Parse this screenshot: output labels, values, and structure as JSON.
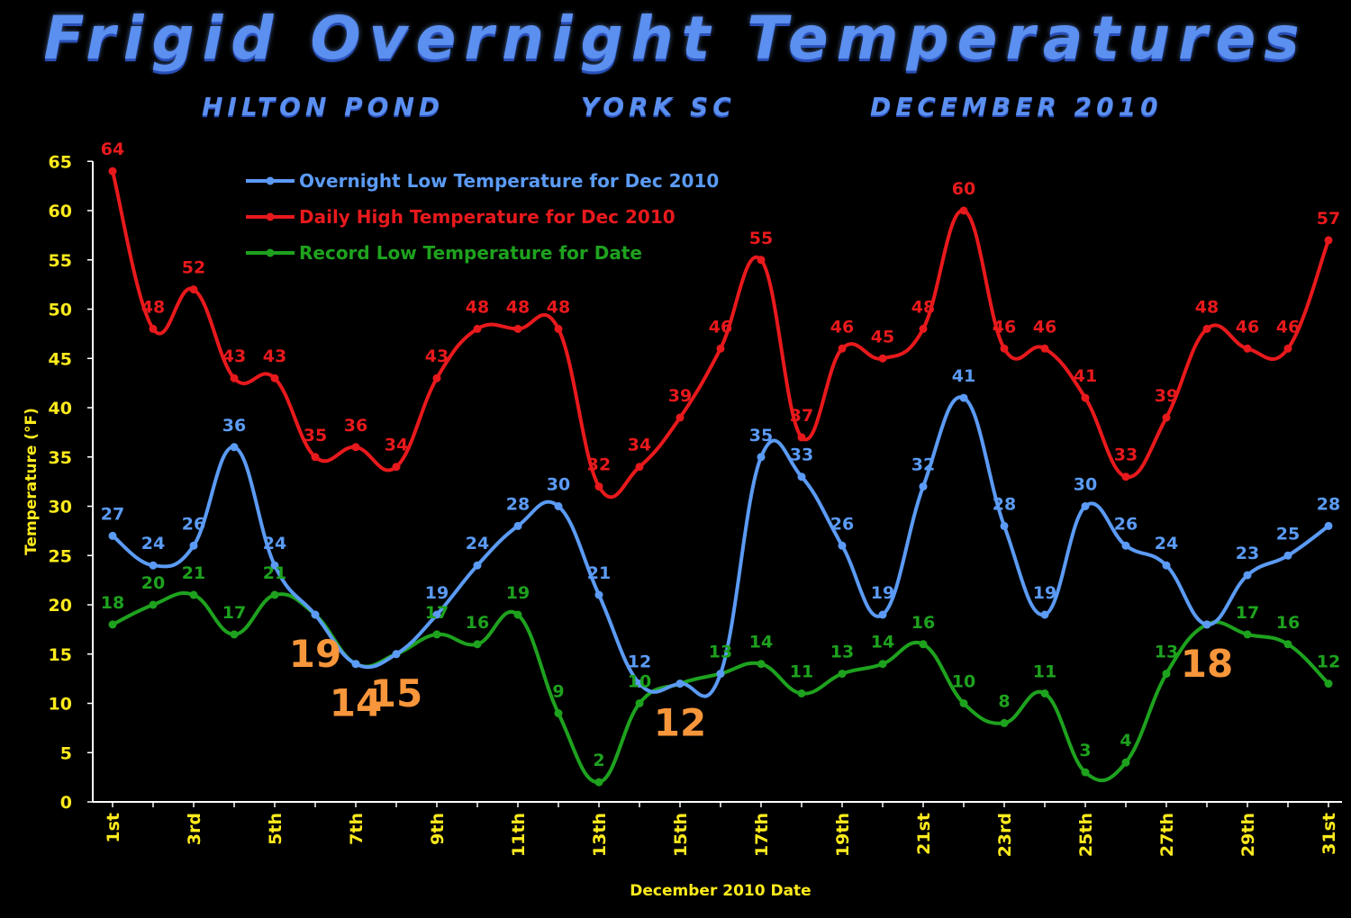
{
  "header": {
    "title": "Frigid Overnight Temperatures",
    "subtitle_left": "HILTON POND",
    "subtitle_mid": "YORK SC",
    "subtitle_right": "DECEMBER 2010"
  },
  "colors": {
    "background": "#000000",
    "axis_text": "#ffeb1c",
    "title": "#5b8ff0",
    "callout": "#f7963a"
  },
  "chart_data": {
    "type": "line",
    "x": [
      1,
      2,
      3,
      4,
      5,
      6,
      7,
      8,
      9,
      10,
      11,
      12,
      13,
      14,
      15,
      16,
      17,
      18,
      19,
      20,
      21,
      22,
      23,
      24,
      25,
      26,
      27,
      28,
      29,
      30,
      31
    ],
    "x_tick_positions": [
      1,
      3,
      5,
      7,
      9,
      11,
      13,
      15,
      17,
      19,
      21,
      23,
      25,
      27,
      29,
      31
    ],
    "x_tick_labels": [
      "1st",
      "3rd",
      "5th",
      "7th",
      "9th",
      "11th",
      "13th",
      "15th",
      "17th",
      "19th",
      "21st",
      "23rd",
      "25th",
      "27th",
      "29th",
      "31st"
    ],
    "xlabel": "December 2010 Date",
    "ylabel": "Temperature (°F)",
    "ylim": [
      0,
      65
    ],
    "y_ticks": [
      0,
      5,
      10,
      15,
      20,
      25,
      30,
      35,
      40,
      45,
      50,
      55,
      60,
      65
    ],
    "grid": false,
    "legend_position": "top-left",
    "series": [
      {
        "name": "Overnight Low Temperature for Dec 2010",
        "color": "#5b9bf5",
        "values": [
          27,
          24,
          26,
          36,
          24,
          19,
          14,
          15,
          19,
          24,
          28,
          30,
          21,
          12,
          12,
          13,
          35,
          33,
          26,
          19,
          32,
          41,
          28,
          19,
          30,
          26,
          24,
          18,
          23,
          25,
          28
        ],
        "labels": [
          "27",
          "24",
          "26",
          "36",
          "24",
          "",
          "",
          "",
          "19",
          "24",
          "28",
          "30",
          "21",
          "12",
          "",
          "",
          "35",
          "33",
          "26",
          "19",
          "32",
          "41",
          "28",
          "19",
          "30",
          "26",
          "24",
          "",
          "23",
          "25",
          "28"
        ]
      },
      {
        "name": "Daily High Temperature for Dec 2010",
        "color": "#e8191c",
        "values": [
          64,
          48,
          52,
          43,
          43,
          35,
          36,
          34,
          43,
          48,
          48,
          48,
          32,
          34,
          39,
          46,
          55,
          37,
          46,
          45,
          48,
          60,
          46,
          46,
          41,
          33,
          39,
          48,
          46,
          46,
          57
        ],
        "labels": [
          "64",
          "48",
          "52",
          "43",
          "43",
          "35",
          "36",
          "34",
          "43",
          "48",
          "48",
          "48",
          "32",
          "34",
          "39",
          "46",
          "55",
          "37",
          "46",
          "45",
          "48",
          "60",
          "46",
          "46",
          "41",
          "33",
          "39",
          "48",
          "46",
          "46",
          "57"
        ]
      },
      {
        "name": "Record Low Temperature for Date",
        "color": "#1ea21e",
        "values": [
          18,
          20,
          21,
          17,
          21,
          19,
          14,
          15,
          17,
          16,
          19,
          9,
          2,
          10,
          12,
          13,
          14,
          11,
          13,
          14,
          16,
          10,
          8,
          11,
          3,
          4,
          13,
          18,
          17,
          16,
          12
        ],
        "labels": [
          "18",
          "20",
          "21",
          "17",
          "21",
          "",
          "",
          "",
          "17",
          "16",
          "19",
          "9",
          "2",
          "10",
          "",
          "13",
          "14",
          "11",
          "13",
          "14",
          "16",
          "10",
          "8",
          "11",
          "3",
          "4",
          "13",
          "",
          "17",
          "16",
          "12"
        ]
      }
    ],
    "callouts": [
      {
        "x": 6,
        "text": "19"
      },
      {
        "x": 7,
        "text": "14"
      },
      {
        "x": 8,
        "text": "15"
      },
      {
        "x": 15,
        "text": "12"
      },
      {
        "x": 28,
        "text": "18"
      }
    ]
  }
}
